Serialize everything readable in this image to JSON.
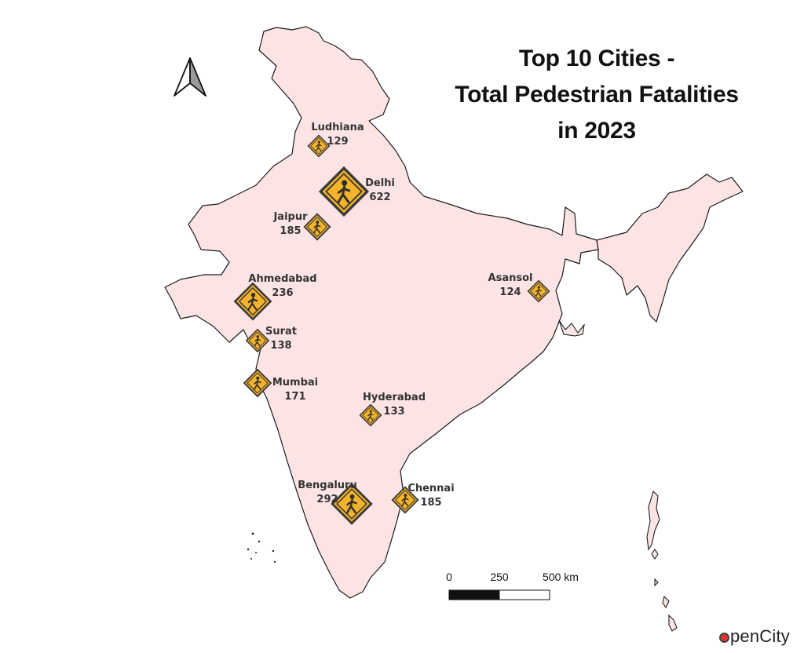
{
  "title_lines": [
    "Top 10 Cities -",
    "Total Pedestrian Fatalities",
    "in 2023"
  ],
  "colors": {
    "land": "#fde4e4",
    "border": "#1a1a1a",
    "marker_fill": "#f5b32a",
    "marker_stroke": "#3a3a3a",
    "logo_accent": "#e0342e"
  },
  "icons": {
    "north_arrow": "north-arrow-icon",
    "marker": "pedestrian-crossing-sign-icon"
  },
  "cities": [
    {
      "name": "Ludhiana",
      "value": "129"
    },
    {
      "name": "Delhi",
      "value": "622"
    },
    {
      "name": "Jaipur",
      "value": "185"
    },
    {
      "name": "Ahmedabad",
      "value": "236"
    },
    {
      "name": "Surat",
      "value": "138"
    },
    {
      "name": "Mumbai",
      "value": "171"
    },
    {
      "name": "Hyderabad",
      "value": "133"
    },
    {
      "name": "Asansol",
      "value": "124"
    },
    {
      "name": "Bengaluru",
      "value": "292"
    },
    {
      "name": "Chennai",
      "value": "185"
    }
  ],
  "scale_bar": {
    "labels": [
      "0",
      "250",
      "500 km"
    ]
  },
  "logo": {
    "text": "penCity"
  }
}
